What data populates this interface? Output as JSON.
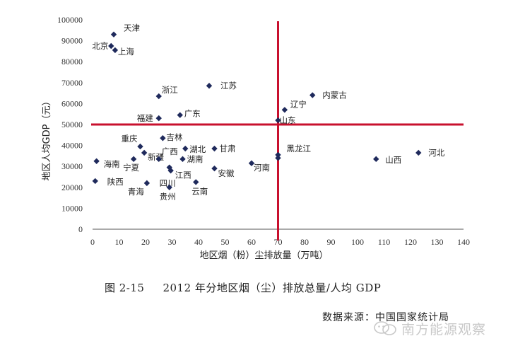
{
  "chart_data": {
    "type": "scatter",
    "xlabel": "地区烟（粉）尘排放量（万吨）",
    "ylabel": "地区人均GDP（元）",
    "xlim": [
      0,
      140
    ],
    "ylim": [
      0,
      100000
    ],
    "x_ticks": [
      "0",
      "10",
      "20",
      "30",
      "40",
      "50",
      "60",
      "70",
      "80",
      "90",
      "100",
      "110",
      "120",
      "130",
      "140"
    ],
    "y_ticks": [
      "0",
      "10000",
      "20000",
      "30000",
      "40000",
      "50000",
      "60000",
      "70000",
      "80000",
      "90000",
      "100000"
    ],
    "reference_lines": {
      "x": 70,
      "y": 50000
    },
    "points": [
      {
        "name": "天津",
        "x": 8,
        "y": 93000
      },
      {
        "name": "北京",
        "x": 7,
        "y": 87500
      },
      {
        "name": "上海",
        "x": 8.5,
        "y": 85500
      },
      {
        "name": "江苏",
        "x": 44,
        "y": 68500
      },
      {
        "name": "浙江",
        "x": 25,
        "y": 63500
      },
      {
        "name": "内蒙古",
        "x": 83,
        "y": 64000
      },
      {
        "name": "辽宁",
        "x": 72.5,
        "y": 57000
      },
      {
        "name": "福建",
        "x": 25,
        "y": 53000
      },
      {
        "name": "广东",
        "x": 33,
        "y": 54500
      },
      {
        "name": "山东",
        "x": 70,
        "y": 52000
      },
      {
        "name": "重庆",
        "x": 18,
        "y": 39500
      },
      {
        "name": "吉林",
        "x": 26.5,
        "y": 43500
      },
      {
        "name": "湖北",
        "x": 35,
        "y": 38500
      },
      {
        "name": "甘肃",
        "x": 46,
        "y": 38500
      },
      {
        "name": "新疆",
        "x": 19.5,
        "y": 36500
      },
      {
        "name": "黑龙江",
        "x": 70,
        "y": 35500
      },
      {
        "name": "山西",
        "x": 107,
        "y": 33500
      },
      {
        "name": "河北",
        "x": 123,
        "y": 36500
      },
      {
        "name": "海南",
        "x": 1.5,
        "y": 32500
      },
      {
        "name": "广西",
        "x": 25,
        "y": 33500
      },
      {
        "name": "湖南",
        "x": 34,
        "y": 33500
      },
      {
        "name": "河南",
        "x": 60,
        "y": 31500
      },
      {
        "name": "宁夏",
        "x": 15.5,
        "y": 33500
      },
      {
        "name": "江西",
        "x": 29,
        "y": 29500
      },
      {
        "name": "四川",
        "x": 29.5,
        "y": 28000
      },
      {
        "name": "安徽",
        "x": 46,
        "y": 29000
      },
      {
        "name": "陕西",
        "x": 1,
        "y": 23000
      },
      {
        "name": "青海",
        "x": 20.5,
        "y": 22000
      },
      {
        "name": "云南",
        "x": 39,
        "y": 22500
      },
      {
        "name": "贵州",
        "x": 29,
        "y": 20000
      },
      {
        "name": "",
        "x": 70,
        "y": 34000
      }
    ]
  },
  "caption": {
    "figure_number": "图 2-15",
    "title": "2012 年分地区烟（尘）排放总量/人均 GDP"
  },
  "source": "数据来源：中国国家统计局",
  "watermark": "南方能源观察",
  "colors": {
    "marker": "#1f2a5c",
    "reference_line": "#c8102e",
    "axis": "#555555"
  }
}
